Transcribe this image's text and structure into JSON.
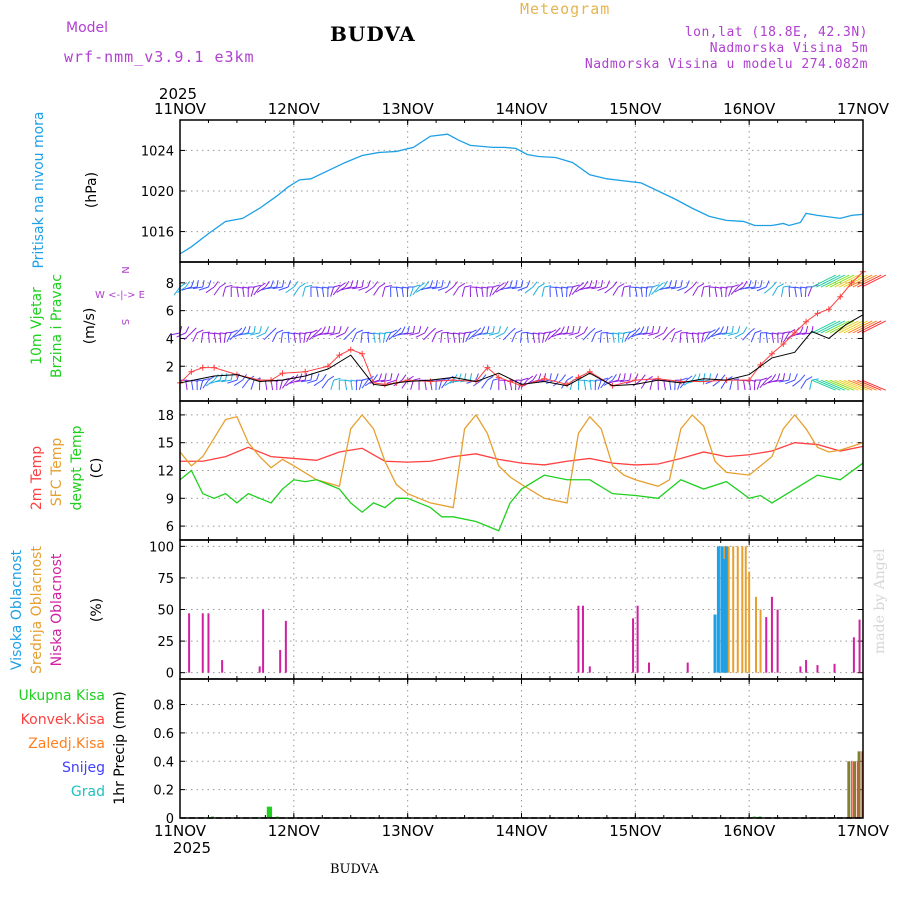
{
  "header": {
    "station": "BUDVA",
    "model_label": "Model",
    "model_name": "wrf-nmm_v3.9.1 e3km",
    "meteogram_label": "Meteogram",
    "lonlat": "lon,lat (18.8E, 42.3N)",
    "altitude": "Nadmorska Visina 5m",
    "model_altitude": "Nadmorska Visina u modelu 274.082m"
  },
  "footer": {
    "station": "BUDVA",
    "credit": "made by Angel"
  },
  "time_axis": {
    "year": "2025",
    "ticks": [
      "11NOV",
      "12NOV",
      "13NOV",
      "14NOV",
      "15NOV",
      "16NOV",
      "17NOV"
    ],
    "range_days": [
      0,
      6
    ]
  },
  "colors": {
    "pressure": "#1ea0e6",
    "wind_avg": "#000000",
    "gust": "#ff4040",
    "t2m": "#ff4040",
    "tsfc": "#e6a030",
    "dewpt": "#20d020",
    "high_cloud": "#1ea0e6",
    "mid_cloud": "#e6a030",
    "low_cloud": "#d020a0",
    "total_precip": "#20d020",
    "conv_precip": "#ff4040",
    "frozen_precip": "#ff8020",
    "snow": "#4040ff",
    "hail": "#20c0c0",
    "grid": "#999999"
  },
  "chart_data": [
    {
      "type": "line",
      "title": "Pritisak na nivou mora",
      "ylabel": "(hPa)",
      "ylim": [
        1013,
        1027
      ],
      "yticks": [
        1016,
        1020,
        1024
      ],
      "series": [
        {
          "name": "Pressure",
          "x": [
            0,
            0.1,
            0.25,
            0.4,
            0.55,
            0.7,
            0.85,
            0.95,
            1.05,
            1.15,
            1.3,
            1.45,
            1.6,
            1.75,
            1.9,
            2.05,
            2.2,
            2.35,
            2.45,
            2.55,
            2.65,
            2.75,
            2.85,
            2.95,
            3.05,
            3.15,
            3.3,
            3.45,
            3.6,
            3.75,
            3.9,
            4.05,
            4.2,
            4.35,
            4.5,
            4.65,
            4.8,
            4.95,
            5.05,
            5.2,
            5.3,
            5.35,
            5.45,
            5.5,
            5.6,
            5.8,
            5.9,
            6.0
          ],
          "values": [
            1013.8,
            1014.5,
            1015.8,
            1017.0,
            1017.3,
            1018.3,
            1019.5,
            1020.4,
            1021.1,
            1021.2,
            1022.0,
            1022.8,
            1023.5,
            1023.8,
            1023.9,
            1024.3,
            1025.4,
            1025.6,
            1025.0,
            1024.5,
            1024.4,
            1024.3,
            1024.3,
            1024.2,
            1023.6,
            1023.4,
            1023.3,
            1022.8,
            1021.6,
            1021.2,
            1021.0,
            1020.8,
            1020.0,
            1019.2,
            1018.3,
            1017.5,
            1017.1,
            1017.0,
            1016.6,
            1016.6,
            1016.8,
            1016.6,
            1016.9,
            1017.8,
            1017.6,
            1017.3,
            1017.6,
            1017.7
          ]
        }
      ]
    },
    {
      "type": "line",
      "title": "10m Vjetar",
      "subtitle": "Brzina i Pravac",
      "ylabel": "(m/s)",
      "direction_legend": "W <-|-> E",
      "direction_letters": [
        "N",
        "S"
      ],
      "ylim": [
        -0.5,
        9.5
      ],
      "yticks": [
        2,
        4,
        6,
        8
      ],
      "series": [
        {
          "name": "Wind speed",
          "x": [
            0,
            0.3,
            0.5,
            0.7,
            0.9,
            1.1,
            1.3,
            1.5,
            1.7,
            1.8,
            1.9,
            2.0,
            2.2,
            2.4,
            2.6,
            2.8,
            3.0,
            3.2,
            3.4,
            3.6,
            3.8,
            4.0,
            4.2,
            4.4,
            4.6,
            4.8,
            5.0,
            5.2,
            5.4,
            5.55,
            5.7,
            5.85,
            6.0
          ],
          "values": [
            0.8,
            1.3,
            1.4,
            0.9,
            1.0,
            1.3,
            1.8,
            2.8,
            0.7,
            0.6,
            0.8,
            0.9,
            1.0,
            1.2,
            0.9,
            1.5,
            0.7,
            0.9,
            0.6,
            1.5,
            0.6,
            0.7,
            1.0,
            0.8,
            1.1,
            1.0,
            1.4,
            2.6,
            3.0,
            4.5,
            4.0,
            5.0,
            5.7
          ]
        },
        {
          "name": "Gust",
          "x": [
            0,
            0.1,
            0.2,
            0.3,
            0.5,
            0.7,
            0.8,
            0.9,
            1.1,
            1.3,
            1.4,
            1.5,
            1.6,
            1.7,
            1.8,
            1.9,
            2.0,
            2.2,
            2.4,
            2.6,
            2.7,
            2.8,
            2.9,
            3.0,
            3.2,
            3.4,
            3.5,
            3.6,
            3.8,
            4.0,
            4.2,
            4.4,
            4.6,
            4.8,
            5.0,
            5.1,
            5.2,
            5.3,
            5.4,
            5.5,
            5.6,
            5.7,
            5.8,
            5.9,
            6.0
          ],
          "values": [
            0.8,
            1.6,
            1.9,
            1.9,
            1.4,
            1.0,
            1.0,
            1.5,
            1.6,
            2.0,
            2.8,
            3.2,
            2.9,
            0.8,
            0.7,
            0.8,
            1.0,
            0.9,
            1.0,
            0.9,
            1.9,
            1.2,
            0.9,
            0.6,
            1.1,
            0.7,
            1.2,
            1.6,
            0.6,
            1.0,
            1.1,
            0.9,
            0.9,
            1.0,
            1.0,
            2.1,
            2.9,
            3.6,
            4.4,
            5.2,
            5.8,
            6.1,
            7.0,
            8.0,
            8.8
          ]
        }
      ],
      "barb_rows": [
        {
          "name": "wind barbs row 1",
          "y": 7.7
        },
        {
          "name": "wind barbs row 2",
          "y": 4.4
        },
        {
          "name": "wind barbs row 3",
          "y": 1.0
        }
      ]
    },
    {
      "type": "line",
      "title": "2m Temp",
      "subtitle": "SFC Temp",
      "extra": "dewpt Temp",
      "ylabel": "(C)",
      "ylim": [
        4.5,
        19.5
      ],
      "yticks": [
        6,
        9,
        12,
        15,
        18
      ],
      "series": [
        {
          "name": "2m Temp",
          "x": [
            0,
            0.2,
            0.4,
            0.6,
            0.8,
            1.0,
            1.2,
            1.4,
            1.6,
            1.8,
            2.0,
            2.2,
            2.4,
            2.6,
            2.8,
            3.0,
            3.2,
            3.4,
            3.6,
            3.8,
            4.0,
            4.2,
            4.4,
            4.6,
            4.8,
            5.0,
            5.2,
            5.4,
            5.6,
            5.8,
            6.0
          ],
          "values": [
            13.0,
            13.0,
            13.5,
            14.5,
            13.5,
            13.3,
            13.1,
            14.0,
            14.4,
            13.0,
            12.9,
            13.0,
            13.5,
            13.8,
            13.2,
            12.8,
            12.6,
            13.0,
            13.3,
            12.8,
            12.6,
            12.7,
            13.3,
            14.0,
            13.5,
            13.7,
            14.1,
            15.0,
            14.8,
            14.1,
            14.6
          ]
        },
        {
          "name": "SFC Temp",
          "x": [
            0,
            0.1,
            0.2,
            0.3,
            0.4,
            0.5,
            0.6,
            0.7,
            0.8,
            0.9,
            1.0,
            1.2,
            1.4,
            1.5,
            1.6,
            1.7,
            1.8,
            1.9,
            2.0,
            2.2,
            2.4,
            2.5,
            2.6,
            2.7,
            2.8,
            2.9,
            3.0,
            3.2,
            3.4,
            3.5,
            3.6,
            3.7,
            3.8,
            3.9,
            4.0,
            4.2,
            4.3,
            4.4,
            4.5,
            4.6,
            4.7,
            4.8,
            5.0,
            5.2,
            5.3,
            5.4,
            5.5,
            5.6,
            5.7,
            5.8,
            6.0
          ],
          "values": [
            14.0,
            12.5,
            13.5,
            15.5,
            17.5,
            17.8,
            15.0,
            13.5,
            12.3,
            13.2,
            12.5,
            11.0,
            10.3,
            16.5,
            18.0,
            16.5,
            13.0,
            10.5,
            9.5,
            8.5,
            8.0,
            16.5,
            18.0,
            16.0,
            12.5,
            11.3,
            10.5,
            9.0,
            8.5,
            16.0,
            17.8,
            16.5,
            12.5,
            11.5,
            11.0,
            10.3,
            11.0,
            16.5,
            18.0,
            16.8,
            13.0,
            11.8,
            11.5,
            13.5,
            16.5,
            18.0,
            16.5,
            14.5,
            14.0,
            14.2,
            15.0
          ]
        },
        {
          "name": "dewpt Temp",
          "x": [
            0,
            0.1,
            0.2,
            0.3,
            0.4,
            0.5,
            0.6,
            0.7,
            0.8,
            0.9,
            1.0,
            1.1,
            1.2,
            1.3,
            1.4,
            1.5,
            1.6,
            1.7,
            1.8,
            1.9,
            2.0,
            2.2,
            2.3,
            2.4,
            2.6,
            2.8,
            2.9,
            3.0,
            3.2,
            3.4,
            3.6,
            3.8,
            4.0,
            4.2,
            4.4,
            4.6,
            4.8,
            5.0,
            5.1,
            5.2,
            5.4,
            5.6,
            5.8,
            6.0
          ],
          "values": [
            11.0,
            12.0,
            9.5,
            9.0,
            9.5,
            8.5,
            9.5,
            9.0,
            8.5,
            10.0,
            11.0,
            10.8,
            11.0,
            10.5,
            10.0,
            8.5,
            7.5,
            8.5,
            8.0,
            9.0,
            9.0,
            8.0,
            7.0,
            7.0,
            6.5,
            5.5,
            8.5,
            10.0,
            11.5,
            11.0,
            11.0,
            9.5,
            9.3,
            9.0,
            11.0,
            10.0,
            10.8,
            9.0,
            9.3,
            8.5,
            10.0,
            11.5,
            11.0,
            12.8
          ]
        }
      ]
    },
    {
      "type": "bar",
      "title": "Visoka Oblacnost",
      "subtitle": "Srednja Oblacnost",
      "extra": "Niska Oblacnost",
      "ylabel": "(%)",
      "ylim": [
        -5,
        105
      ],
      "yticks": [
        0,
        25,
        50,
        75,
        100
      ],
      "series": [
        {
          "name": "Niska Oblacnost",
          "x": [
            0.08,
            0.2,
            0.25,
            0.37,
            0.7,
            0.73,
            0.88,
            0.93,
            3.5,
            3.54,
            3.6,
            3.98,
            4.02,
            4.12,
            4.46,
            5.15,
            5.2,
            5.25,
            5.45,
            5.5,
            5.6,
            5.75,
            5.92,
            5.97
          ],
          "values": [
            47,
            47,
            47,
            10,
            5,
            50,
            18,
            41,
            53,
            53,
            5,
            43,
            53,
            8,
            8,
            44,
            60,
            50,
            5,
            10,
            6,
            7,
            28,
            42
          ]
        },
        {
          "name": "Srednja Oblacnost",
          "x": [
            4.78,
            4.8,
            4.82,
            4.86,
            4.9,
            4.94,
            4.97,
            5.0,
            5.06,
            5.1
          ],
          "values": [
            100,
            100,
            100,
            100,
            100,
            100,
            100,
            80,
            60,
            50
          ]
        },
        {
          "name": "Visoka Oblacnost",
          "x": [
            4.7,
            4.73,
            4.76,
            4.78,
            4.8
          ],
          "values": [
            46,
            100,
            100,
            90,
            100
          ]
        }
      ]
    },
    {
      "type": "bar",
      "title": "Ukupna Kisa",
      "labels": [
        "Ukupna Kisa",
        "Konvek.Kisa",
        "Zaledj.Kisa",
        "Snijeg",
        "Grad"
      ],
      "ylabel": "1hr Precip (mm)",
      "ylim": [
        0,
        0.98
      ],
      "yticks": [
        0,
        0.2,
        0.4,
        0.6,
        0.8
      ],
      "series": [
        {
          "name": "Ukupna Kisa",
          "x": [
            0.29,
            0.78,
            0.8,
            0.86,
            5.05,
            5.1,
            5.88,
            5.93,
            5.97
          ],
          "values": [
            0.01,
            0.08,
            0.08,
            0.01,
            0.01,
            0.01,
            0.4,
            0.4,
            0.47
          ]
        },
        {
          "name": "Konvek.Kisa",
          "x": [
            5.9,
            5.95,
            5.99
          ],
          "values": [
            0.4,
            0.4,
            0.47
          ]
        }
      ]
    }
  ]
}
